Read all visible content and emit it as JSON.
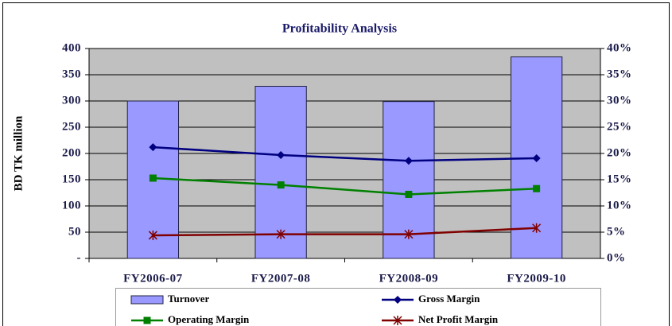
{
  "chart_data": {
    "type": "bar-line",
    "title": "Profitability Analysis",
    "y_label": "BD TK million",
    "categories": [
      "FY2006-07",
      "FY2007-08",
      "FY2008-09",
      "FY2009-10"
    ],
    "series": [
      {
        "name": "Turnover",
        "type": "bar",
        "color": "#9999ff",
        "values": [
          300,
          328,
          299,
          384
        ]
      },
      {
        "name": "Gross Margin",
        "type": "line",
        "marker": "diamond",
        "axis": "y2",
        "color": "#000080",
        "values": [
          21.2,
          19.7,
          18.6,
          19.1
        ]
      },
      {
        "name": "Operating Margin",
        "type": "line",
        "marker": "square",
        "axis": "y2",
        "color": "#008000",
        "values": [
          15.3,
          14.0,
          12.2,
          13.3
        ]
      },
      {
        "name": "Net Profit Margin",
        "type": "line",
        "marker": "star",
        "axis": "y2",
        "color": "#800000",
        "values": [
          4.4,
          4.6,
          4.6,
          5.8
        ]
      }
    ],
    "ylim": [
      0,
      400
    ],
    "yticks": [
      {
        "value": 0,
        "label": "-"
      },
      50,
      100,
      150,
      200,
      250,
      300,
      350,
      400
    ],
    "y2lim": [
      0,
      40
    ],
    "y2ticks": [
      {
        "value": 0,
        "label": "0%"
      },
      {
        "value": 5,
        "label": "5%"
      },
      {
        "value": 10,
        "label": "10%"
      },
      {
        "value": 15,
        "label": "15%"
      },
      {
        "value": 20,
        "label": "20%"
      },
      {
        "value": 25,
        "label": "25%"
      },
      {
        "value": 30,
        "label": "30%"
      },
      {
        "value": 35,
        "label": "35%"
      },
      {
        "value": 40,
        "label": "40%"
      }
    ],
    "grid": true,
    "legend": "bottom"
  }
}
